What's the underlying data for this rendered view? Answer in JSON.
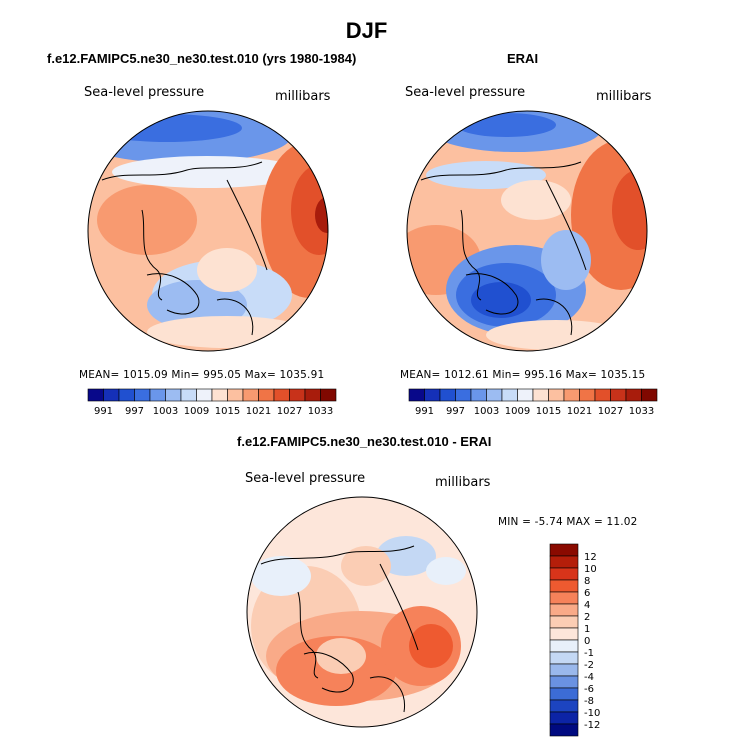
{
  "figure": {
    "title": "DJF"
  },
  "panels": [
    {
      "title": "f.e12.FAMIPC5.ne30_ne30.test.010 (yrs 1980-1984)",
      "variable_label": "Sea-level pressure",
      "units_label": "millibars",
      "stats_text": "MEAN= 1015.09   Min= 995.05   Max= 1035.91",
      "colorbar": {
        "orientation": "horizontal",
        "tick_labels": [
          "991",
          "997",
          "1003",
          "1009",
          "1015",
          "1021",
          "1027",
          "1033"
        ],
        "colors": [
          "#08088a",
          "#1530b8",
          "#2050d0",
          "#3a6ee0",
          "#6a96ea",
          "#9cbcf2",
          "#c8dcf8",
          "#eef2fa",
          "#fde2d2",
          "#fcc0a0",
          "#f89a70",
          "#f07446",
          "#e2502a",
          "#c8321a",
          "#a81c0c",
          "#800800"
        ]
      }
    },
    {
      "title": "ERAI",
      "variable_label": "Sea-level pressure",
      "units_label": "millibars",
      "stats_text": "MEAN= 1012.61   Min= 995.16   Max= 1035.15",
      "colorbar": {
        "orientation": "horizontal",
        "tick_labels": [
          "991",
          "997",
          "1003",
          "1009",
          "1015",
          "1021",
          "1027",
          "1033"
        ],
        "colors": [
          "#08088a",
          "#1530b8",
          "#2050d0",
          "#3a6ee0",
          "#6a96ea",
          "#9cbcf2",
          "#c8dcf8",
          "#eef2fa",
          "#fde2d2",
          "#fcc0a0",
          "#f89a70",
          "#f07446",
          "#e2502a",
          "#c8321a",
          "#a81c0c",
          "#800800"
        ]
      }
    },
    {
      "title": "f.e12.FAMIPC5.ne30_ne30.test.010 - ERAI",
      "variable_label": "Sea-level pressure",
      "units_label": "millibars",
      "stats_text": "MIN =   -5.74  MAX =   11.02",
      "colorbar": {
        "orientation": "vertical",
        "tick_labels": [
          "12",
          "10",
          "8",
          "6",
          "4",
          "2",
          "1",
          "0",
          "-1",
          "-2",
          "-4",
          "-6",
          "-8",
          "-10",
          "-12"
        ],
        "colors": [
          "#8a0a00",
          "#b41e0a",
          "#d8341a",
          "#ee5a30",
          "#f6825a",
          "#f9aa88",
          "#fbcdb4",
          "#fde6da",
          "#e8f0fa",
          "#c4d8f4",
          "#9ab8ec",
          "#6a92e2",
          "#3c6cd6",
          "#1c44c0",
          "#0c24a6",
          "#000a80"
        ]
      }
    }
  ]
}
